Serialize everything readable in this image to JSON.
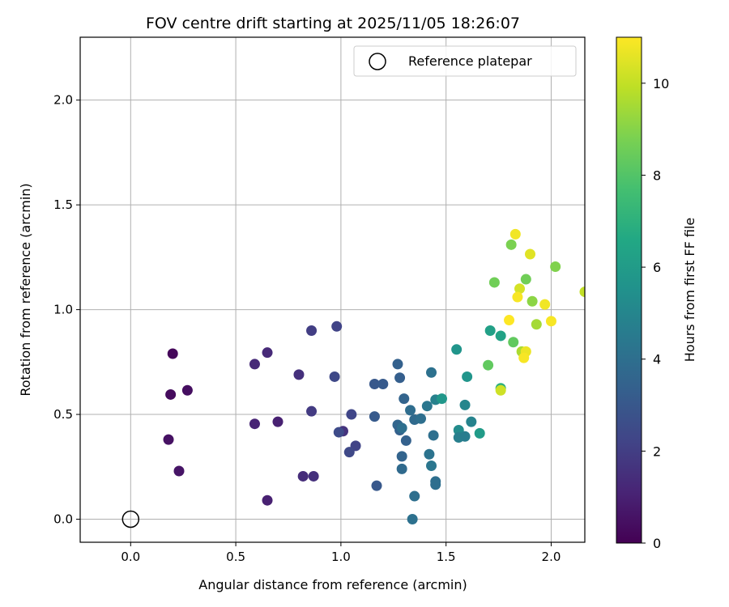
{
  "chart_data": {
    "type": "scatter",
    "title": "FOV centre drift starting at 2025/11/05 18:26:07",
    "xlabel": "Angular distance from reference (arcmin)",
    "ylabel": "Rotation from reference (arcmin)",
    "xlim": [
      -0.24,
      2.16
    ],
    "ylim": [
      -0.11,
      2.3
    ],
    "xticks": [
      "0.0",
      "0.5",
      "1.0",
      "1.5",
      "2.0"
    ],
    "yticks": [
      "0.0",
      "0.5",
      "1.0",
      "1.5",
      "2.0"
    ],
    "grid": true,
    "legend": {
      "label": "Reference platepar",
      "placement": "upper-right"
    },
    "reference_point": {
      "x": 0.0,
      "y": 0.0
    },
    "colorbar": {
      "label": "Hours from first FF file",
      "min": 0,
      "max": 11,
      "ticks": [
        "0",
        "2",
        "4",
        "6",
        "8",
        "10"
      ]
    },
    "points": [
      {
        "x": 0.2,
        "y": 0.79,
        "t": 0.2
      },
      {
        "x": 0.19,
        "y": 0.595,
        "t": 0.3
      },
      {
        "x": 0.27,
        "y": 0.615,
        "t": 0.4
      },
      {
        "x": 0.18,
        "y": 0.38,
        "t": 0.5
      },
      {
        "x": 0.23,
        "y": 0.23,
        "t": 0.6
      },
      {
        "x": 0.65,
        "y": 0.09,
        "t": 1.0
      },
      {
        "x": 0.59,
        "y": 0.455,
        "t": 1.1
      },
      {
        "x": 0.7,
        "y": 0.465,
        "t": 1.0
      },
      {
        "x": 0.59,
        "y": 0.74,
        "t": 1.3
      },
      {
        "x": 0.65,
        "y": 0.795,
        "t": 1.3
      },
      {
        "x": 0.8,
        "y": 0.69,
        "t": 1.5
      },
      {
        "x": 0.82,
        "y": 0.205,
        "t": 1.4
      },
      {
        "x": 0.87,
        "y": 0.205,
        "t": 1.5
      },
      {
        "x": 0.86,
        "y": 0.515,
        "t": 1.9
      },
      {
        "x": 0.86,
        "y": 0.9,
        "t": 2.0
      },
      {
        "x": 0.98,
        "y": 0.92,
        "t": 2.2
      },
      {
        "x": 0.97,
        "y": 0.68,
        "t": 2.4
      },
      {
        "x": 1.01,
        "y": 0.42,
        "t": 1.6
      },
      {
        "x": 0.99,
        "y": 0.415,
        "t": 2.5
      },
      {
        "x": 1.05,
        "y": 0.5,
        "t": 2.3
      },
      {
        "x": 1.07,
        "y": 0.35,
        "t": 2.2
      },
      {
        "x": 1.04,
        "y": 0.32,
        "t": 2.4
      },
      {
        "x": 1.16,
        "y": 0.645,
        "t": 3.0
      },
      {
        "x": 1.2,
        "y": 0.645,
        "t": 3.1
      },
      {
        "x": 1.16,
        "y": 0.49,
        "t": 3.1
      },
      {
        "x": 1.17,
        "y": 0.16,
        "t": 3.0
      },
      {
        "x": 1.27,
        "y": 0.74,
        "t": 3.4
      },
      {
        "x": 1.28,
        "y": 0.675,
        "t": 3.3
      },
      {
        "x": 1.3,
        "y": 0.575,
        "t": 3.5
      },
      {
        "x": 1.27,
        "y": 0.45,
        "t": 3.6
      },
      {
        "x": 1.28,
        "y": 0.425,
        "t": 3.4
      },
      {
        "x": 1.29,
        "y": 0.435,
        "t": 4.0
      },
      {
        "x": 1.31,
        "y": 0.375,
        "t": 3.4
      },
      {
        "x": 1.29,
        "y": 0.3,
        "t": 3.5
      },
      {
        "x": 1.29,
        "y": 0.24,
        "t": 3.8
      },
      {
        "x": 1.33,
        "y": 0.52,
        "t": 3.9
      },
      {
        "x": 1.35,
        "y": 0.475,
        "t": 3.8
      },
      {
        "x": 1.38,
        "y": 0.48,
        "t": 4.0
      },
      {
        "x": 1.41,
        "y": 0.54,
        "t": 4.3
      },
      {
        "x": 1.43,
        "y": 0.7,
        "t": 4.1
      },
      {
        "x": 1.42,
        "y": 0.31,
        "t": 4.2
      },
      {
        "x": 1.43,
        "y": 0.255,
        "t": 4.3
      },
      {
        "x": 1.44,
        "y": 0.4,
        "t": 4.0
      },
      {
        "x": 1.45,
        "y": 0.18,
        "t": 4.0
      },
      {
        "x": 1.45,
        "y": 0.165,
        "t": 4.0
      },
      {
        "x": 1.35,
        "y": 0.11,
        "t": 4.0
      },
      {
        "x": 1.34,
        "y": 0.0,
        "t": 4.1
      },
      {
        "x": 1.45,
        "y": 0.57,
        "t": 4.8
      },
      {
        "x": 1.48,
        "y": 0.575,
        "t": 5.8
      },
      {
        "x": 1.55,
        "y": 0.81,
        "t": 5.7
      },
      {
        "x": 1.56,
        "y": 0.425,
        "t": 5.3
      },
      {
        "x": 1.56,
        "y": 0.39,
        "t": 4.7
      },
      {
        "x": 1.59,
        "y": 0.545,
        "t": 5.0
      },
      {
        "x": 1.59,
        "y": 0.395,
        "t": 4.6
      },
      {
        "x": 1.6,
        "y": 0.68,
        "t": 5.7
      },
      {
        "x": 1.62,
        "y": 0.465,
        "t": 4.9
      },
      {
        "x": 1.66,
        "y": 0.41,
        "t": 6.0
      },
      {
        "x": 1.71,
        "y": 0.9,
        "t": 6.2
      },
      {
        "x": 1.76,
        "y": 0.875,
        "t": 6.3
      },
      {
        "x": 1.7,
        "y": 0.735,
        "t": 8.3
      },
      {
        "x": 1.76,
        "y": 0.625,
        "t": 7.0
      },
      {
        "x": 1.76,
        "y": 0.615,
        "t": 10.2
      },
      {
        "x": 1.73,
        "y": 1.13,
        "t": 8.6
      },
      {
        "x": 1.81,
        "y": 1.31,
        "t": 8.8
      },
      {
        "x": 1.83,
        "y": 1.36,
        "t": 10.8
      },
      {
        "x": 1.85,
        "y": 1.1,
        "t": 10.3
      },
      {
        "x": 1.84,
        "y": 1.06,
        "t": 10.9
      },
      {
        "x": 1.88,
        "y": 1.145,
        "t": 8.6
      },
      {
        "x": 1.9,
        "y": 1.265,
        "t": 10.5
      },
      {
        "x": 1.91,
        "y": 1.04,
        "t": 9.1
      },
      {
        "x": 1.93,
        "y": 0.93,
        "t": 9.5
      },
      {
        "x": 1.97,
        "y": 1.025,
        "t": 10.8
      },
      {
        "x": 1.8,
        "y": 0.95,
        "t": 11.0
      },
      {
        "x": 1.82,
        "y": 0.845,
        "t": 8.3
      },
      {
        "x": 1.86,
        "y": 0.8,
        "t": 9.6
      },
      {
        "x": 1.88,
        "y": 0.8,
        "t": 10.7
      },
      {
        "x": 1.87,
        "y": 0.77,
        "t": 10.9
      },
      {
        "x": 2.0,
        "y": 0.945,
        "t": 10.9
      },
      {
        "x": 2.02,
        "y": 1.205,
        "t": 8.9
      },
      {
        "x": 2.16,
        "y": 1.085,
        "t": 10.0
      }
    ]
  }
}
